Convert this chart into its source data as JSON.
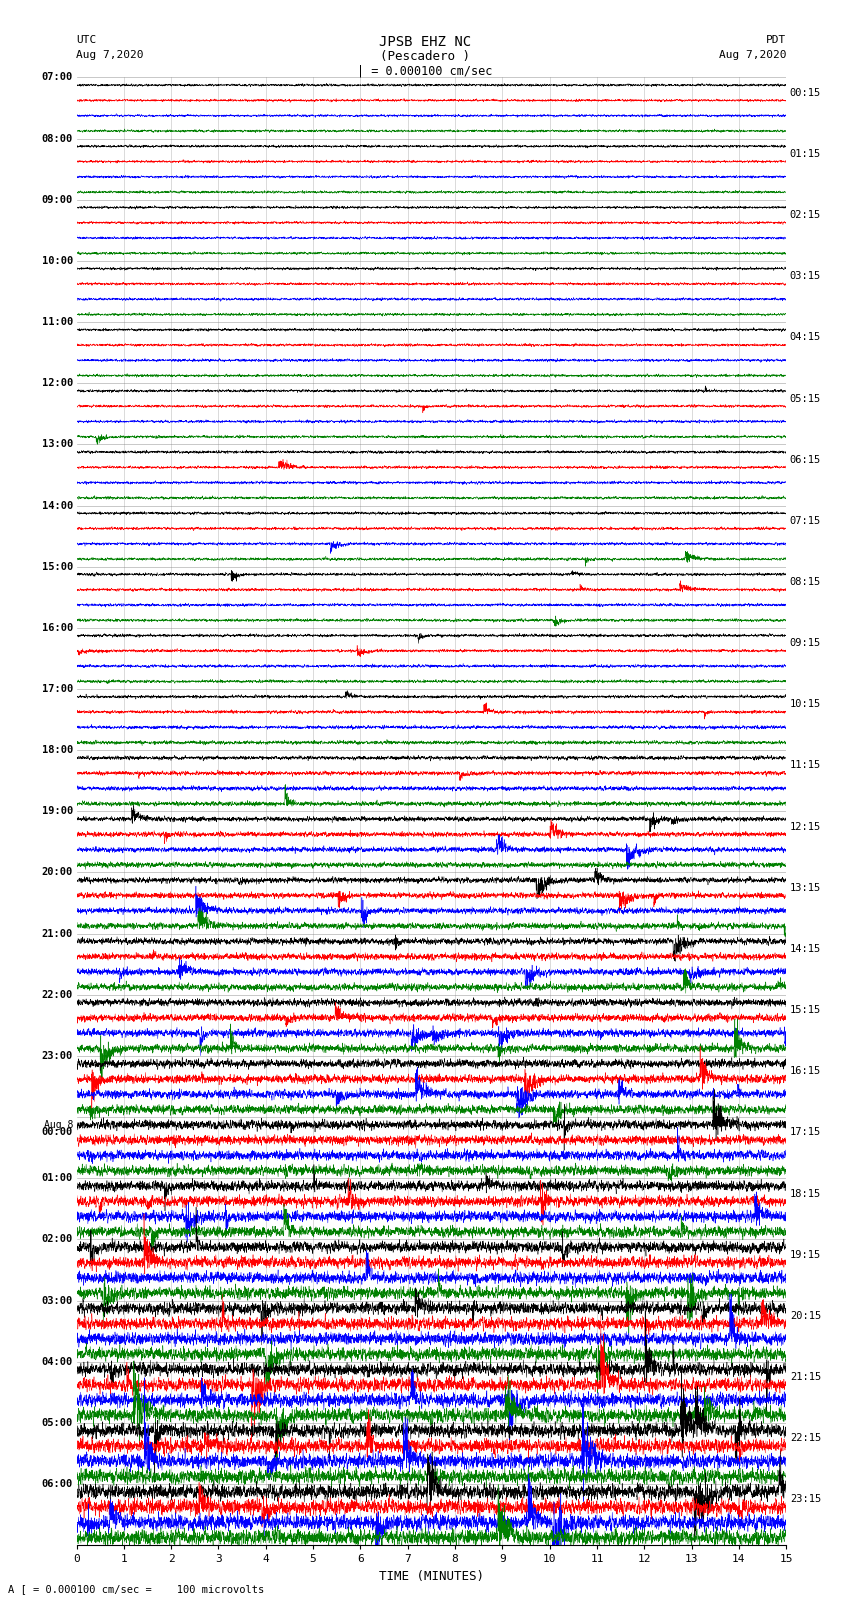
{
  "title_line1": "JPSB EHZ NC",
  "title_line2": "(Pescadero )",
  "scale_label": "| = 0.000100 cm/sec",
  "bottom_label": "A [ = 0.000100 cm/sec =    100 microvolts",
  "utc_label": "UTC",
  "utc_date": "Aug 7,2020",
  "pdt_label": "PDT",
  "pdt_date": "Aug 7,2020",
  "xlabel": "TIME (MINUTES)",
  "left_times": [
    "07:00",
    "08:00",
    "09:00",
    "10:00",
    "11:00",
    "12:00",
    "13:00",
    "14:00",
    "15:00",
    "16:00",
    "17:00",
    "18:00",
    "19:00",
    "20:00",
    "21:00",
    "22:00",
    "23:00",
    "Aug 8\n00:00",
    "01:00",
    "02:00",
    "03:00",
    "04:00",
    "05:00",
    "06:00"
  ],
  "right_times": [
    "00:15",
    "01:15",
    "02:15",
    "03:15",
    "04:15",
    "05:15",
    "06:15",
    "07:15",
    "08:15",
    "09:15",
    "10:15",
    "11:15",
    "12:15",
    "13:15",
    "14:15",
    "15:15",
    "16:15",
    "17:15",
    "18:15",
    "19:15",
    "20:15",
    "21:15",
    "22:15",
    "23:15"
  ],
  "colors": [
    "black",
    "red",
    "blue",
    "green"
  ],
  "bg_color": "white",
  "num_rows": 96,
  "traces_per_group": 4,
  "minutes": 15,
  "figsize": [
    8.5,
    16.13
  ],
  "dpi": 100,
  "samples_per_trace": 4500
}
